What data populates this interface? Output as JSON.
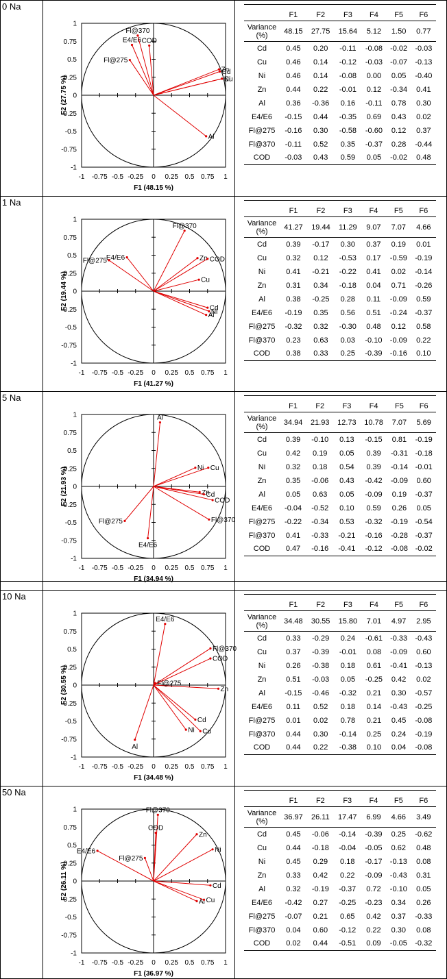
{
  "variables": [
    "Cd",
    "Cu",
    "Ni",
    "Zn",
    "Al",
    "E4/E6",
    "Fl@275",
    "Fl@370",
    "COD"
  ],
  "factors": [
    "F1",
    "F2",
    "F3",
    "F4",
    "F5",
    "F6"
  ],
  "variance_label": "Variance (%)",
  "axis_ticks": [
    "-1",
    "-0.75",
    "-0.5",
    "-0.25",
    "0",
    "0.25",
    "0.5",
    "0.75",
    "1"
  ],
  "colors": {
    "vector": "#e00000",
    "axis": "#000000"
  },
  "panels": [
    {
      "label": "0 Na",
      "xlabel": "F1 (48.15 %)",
      "ylabel": "F2 (27.75 %)",
      "variance": [
        "48.15",
        "27.75",
        "15.64",
        "5.12",
        "1.50",
        "0.77"
      ],
      "rows": [
        [
          "0.45",
          "0.20",
          "-0.11",
          "-0.08",
          "-0.02",
          "-0.03"
        ],
        [
          "0.46",
          "0.14",
          "-0.12",
          "-0.03",
          "-0.07",
          "-0.13"
        ],
        [
          "0.46",
          "0.14",
          "-0.08",
          "0.00",
          "0.05",
          "-0.40"
        ],
        [
          "0.44",
          "0.22",
          "-0.01",
          "0.12",
          "-0.34",
          "0.41"
        ],
        [
          "0.36",
          "-0.36",
          "0.16",
          "-0.11",
          "0.78",
          "0.30"
        ],
        [
          "-0.15",
          "0.44",
          "-0.35",
          "0.69",
          "0.43",
          "0.02"
        ],
        [
          "-0.16",
          "0.30",
          "-0.58",
          "-0.60",
          "0.12",
          "0.37"
        ],
        [
          "-0.11",
          "0.52",
          "0.35",
          "-0.37",
          "0.28",
          "-0.44"
        ],
        [
          "-0.03",
          "0.43",
          "0.59",
          "0.05",
          "-0.02",
          "0.48"
        ]
      ]
    },
    {
      "label": "1 Na",
      "xlabel": "F1 (41.27 %)",
      "ylabel": "F2 (19.44 %)",
      "variance": [
        "41.27",
        "19.44",
        "11.29",
        "9.07",
        "7.07",
        "4.66"
      ],
      "rows": [
        [
          "0.39",
          "-0.17",
          "0.30",
          "0.37",
          "0.19",
          "0.01"
        ],
        [
          "0.32",
          "0.12",
          "-0.53",
          "0.17",
          "-0.59",
          "-0.19"
        ],
        [
          "0.41",
          "-0.21",
          "-0.22",
          "0.41",
          "0.02",
          "-0.14"
        ],
        [
          "0.31",
          "0.34",
          "-0.18",
          "0.04",
          "0.71",
          "-0.26"
        ],
        [
          "0.38",
          "-0.25",
          "0.28",
          "0.11",
          "-0.09",
          "0.59"
        ],
        [
          "-0.19",
          "0.35",
          "0.56",
          "0.51",
          "-0.24",
          "-0.37"
        ],
        [
          "-0.32",
          "0.32",
          "-0.30",
          "0.48",
          "0.12",
          "0.58"
        ],
        [
          "0.23",
          "0.63",
          "0.03",
          "-0.10",
          "-0.09",
          "0.22"
        ],
        [
          "0.38",
          "0.33",
          "0.25",
          "-0.39",
          "-0.16",
          "0.10"
        ]
      ]
    },
    {
      "label": "5 Na",
      "xlabel": "F1 (34.94 %)",
      "ylabel": "F2 (21.93 %)",
      "variance": [
        "34.94",
        "21.93",
        "12.73",
        "10.78",
        "7.07",
        "5.69"
      ],
      "rows": [
        [
          "0.39",
          "-0.10",
          "0.13",
          "-0.15",
          "0.81",
          "-0.19"
        ],
        [
          "0.42",
          "0.19",
          "0.05",
          "0.39",
          "-0.31",
          "-0.18"
        ],
        [
          "0.32",
          "0.18",
          "0.54",
          "0.39",
          "-0.14",
          "-0.01"
        ],
        [
          "0.35",
          "-0.06",
          "0.43",
          "-0.42",
          "-0.09",
          "0.60"
        ],
        [
          "0.05",
          "0.63",
          "0.05",
          "-0.09",
          "0.19",
          "-0.37"
        ],
        [
          "-0.04",
          "-0.52",
          "0.10",
          "0.59",
          "0.26",
          "0.05"
        ],
        [
          "-0.22",
          "-0.34",
          "0.53",
          "-0.32",
          "-0.19",
          "-0.54"
        ],
        [
          "0.41",
          "-0.33",
          "-0.21",
          "-0.16",
          "-0.28",
          "-0.37"
        ],
        [
          "0.47",
          "-0.16",
          "-0.41",
          "-0.12",
          "-0.08",
          "-0.02"
        ]
      ]
    },
    {
      "label": "10 Na",
      "xlabel": "F1 (34.48 %)",
      "ylabel": "F2 (30.55 %)",
      "variance": [
        "34.48",
        "30.55",
        "15.80",
        "7.01",
        "4.97",
        "2.95"
      ],
      "rows": [
        [
          "0.33",
          "-0.29",
          "0.24",
          "-0.61",
          "-0.33",
          "-0.43"
        ],
        [
          "0.37",
          "-0.39",
          "-0.01",
          "0.08",
          "-0.09",
          "0.60"
        ],
        [
          "0.26",
          "-0.38",
          "0.18",
          "0.61",
          "-0.41",
          "-0.13"
        ],
        [
          "0.51",
          "-0.03",
          "0.05",
          "-0.25",
          "0.42",
          "0.02"
        ],
        [
          "-0.15",
          "-0.46",
          "-0.32",
          "0.21",
          "0.30",
          "-0.57"
        ],
        [
          "0.11",
          "0.52",
          "0.18",
          "0.14",
          "-0.43",
          "-0.25"
        ],
        [
          "0.01",
          "0.02",
          "0.78",
          "0.21",
          "0.45",
          "-0.08"
        ],
        [
          "0.44",
          "0.30",
          "-0.14",
          "0.25",
          "0.24",
          "-0.19"
        ],
        [
          "0.44",
          "0.22",
          "-0.38",
          "0.10",
          "0.04",
          "-0.08"
        ]
      ]
    },
    {
      "label": "50 Na",
      "xlabel": "F1 (36.97 %)",
      "ylabel": "F2 (26.11 %)",
      "variance": [
        "36.97",
        "26.11",
        "17.47",
        "6.99",
        "4.66",
        "3.49"
      ],
      "rows": [
        [
          "0.45",
          "-0.06",
          "-0.14",
          "-0.39",
          "0.25",
          "-0.62"
        ],
        [
          "0.44",
          "-0.18",
          "-0.04",
          "-0.05",
          "0.62",
          "0.48"
        ],
        [
          "0.45",
          "0.29",
          "0.18",
          "-0.17",
          "-0.13",
          "0.08"
        ],
        [
          "0.33",
          "0.42",
          "0.22",
          "-0.09",
          "-0.43",
          "0.31"
        ],
        [
          "0.32",
          "-0.19",
          "-0.37",
          "0.72",
          "-0.10",
          "0.05"
        ],
        [
          "-0.42",
          "0.27",
          "-0.25",
          "-0.23",
          "0.34",
          "0.26"
        ],
        [
          "-0.07",
          "0.21",
          "0.65",
          "0.42",
          "0.37",
          "-0.33"
        ],
        [
          "0.04",
          "0.60",
          "-0.12",
          "0.22",
          "0.30",
          "0.08"
        ],
        [
          "0.02",
          "0.44",
          "-0.51",
          "0.09",
          "-0.05",
          "-0.32"
        ]
      ]
    }
  ],
  "chart_data": [
    {
      "type": "scatter",
      "title": "0 Na",
      "xlabel": "F1 (48.15 %)",
      "ylabel": "F2 (27.75 %)",
      "xlim": [
        -1,
        1
      ],
      "ylim": [
        -1,
        1
      ],
      "grid": false,
      "points": [
        {
          "label": "Zn",
          "x": 0.91,
          "y": 0.36
        },
        {
          "label": "Cd",
          "x": 0.92,
          "y": 0.33
        },
        {
          "label": "Cu",
          "x": 0.95,
          "y": 0.23
        },
        {
          "label": "Ni",
          "x": 0.95,
          "y": 0.23
        },
        {
          "label": "Al",
          "x": 0.73,
          "y": -0.57
        },
        {
          "label": "E4/E6",
          "x": -0.3,
          "y": 0.7
        },
        {
          "label": "Fl@275",
          "x": -0.33,
          "y": 0.49
        },
        {
          "label": "Fl@370",
          "x": -0.22,
          "y": 0.83
        },
        {
          "label": "COD",
          "x": -0.06,
          "y": 0.69
        }
      ]
    },
    {
      "type": "scatter",
      "title": "1 Na",
      "xlabel": "F1 (41.27 %)",
      "ylabel": "F2 (19.44 %)",
      "xlim": [
        -1,
        1
      ],
      "ylim": [
        -1,
        1
      ],
      "grid": false,
      "points": [
        {
          "label": "Fl@370",
          "x": 0.43,
          "y": 0.84
        },
        {
          "label": "E4/E6",
          "x": -0.37,
          "y": 0.47
        },
        {
          "label": "Fl@275",
          "x": -0.62,
          "y": 0.43
        },
        {
          "label": "Zn",
          "x": 0.61,
          "y": 0.46
        },
        {
          "label": "COD",
          "x": 0.75,
          "y": 0.45
        },
        {
          "label": "Cu",
          "x": 0.63,
          "y": 0.16
        },
        {
          "label": "Cd",
          "x": 0.75,
          "y": -0.23
        },
        {
          "label": "Ni",
          "x": 0.77,
          "y": -0.28
        },
        {
          "label": "Al",
          "x": 0.73,
          "y": -0.33
        }
      ]
    },
    {
      "type": "scatter",
      "title": "5 Na",
      "xlabel": "F1 (34.94 %)",
      "ylabel": "F2 (21.93 %)",
      "xlim": [
        -1,
        1
      ],
      "ylim": [
        -1,
        1
      ],
      "grid": false,
      "points": [
        {
          "label": "Al",
          "x": 0.09,
          "y": 0.89
        },
        {
          "label": "Ni",
          "x": 0.58,
          "y": 0.26
        },
        {
          "label": "Cu",
          "x": 0.76,
          "y": 0.26
        },
        {
          "label": "Zn",
          "x": 0.64,
          "y": -0.08
        },
        {
          "label": "Cd",
          "x": 0.7,
          "y": -0.11
        },
        {
          "label": "COD",
          "x": 0.82,
          "y": -0.19
        },
        {
          "label": "Fl@370",
          "x": 0.77,
          "y": -0.46
        },
        {
          "label": "Fl@275",
          "x": -0.4,
          "y": -0.48
        },
        {
          "label": "E4/E6",
          "x": -0.08,
          "y": -0.72
        }
      ]
    },
    {
      "type": "scatter",
      "title": "10 Na",
      "xlabel": "F1 (34.48 %)",
      "ylabel": "F2 (30.55 %)",
      "xlim": [
        -1,
        1
      ],
      "ylim": [
        -1,
        1
      ],
      "grid": false,
      "points": [
        {
          "label": "E4/E6",
          "x": 0.16,
          "y": 0.85
        },
        {
          "label": "Fl@370",
          "x": 0.79,
          "y": 0.51
        },
        {
          "label": "COD",
          "x": 0.79,
          "y": 0.37
        },
        {
          "label": "Fl@275",
          "x": 0.02,
          "y": 0.03
        },
        {
          "label": "Zn",
          "x": 0.9,
          "y": -0.05
        },
        {
          "label": "Cd",
          "x": 0.58,
          "y": -0.48
        },
        {
          "label": "Cu",
          "x": 0.65,
          "y": -0.64
        },
        {
          "label": "Ni",
          "x": 0.45,
          "y": -0.62
        },
        {
          "label": "Al",
          "x": -0.26,
          "y": -0.76
        }
      ]
    },
    {
      "type": "scatter",
      "title": "50 Na",
      "xlabel": "F1 (36.97 %)",
      "ylabel": "F2 (26.11 %)",
      "xlim": [
        -1,
        1
      ],
      "ylim": [
        -1,
        1
      ],
      "grid": false,
      "points": [
        {
          "label": "Fl@370",
          "x": 0.06,
          "y": 0.92
        },
        {
          "label": "COD",
          "x": 0.03,
          "y": 0.67
        },
        {
          "label": "Zn",
          "x": 0.6,
          "y": 0.65
        },
        {
          "label": "Ni",
          "x": 0.82,
          "y": 0.44
        },
        {
          "label": "E4/E6",
          "x": -0.78,
          "y": 0.42
        },
        {
          "label": "Fl@275",
          "x": -0.12,
          "y": 0.32
        },
        {
          "label": "Cd",
          "x": 0.79,
          "y": -0.06
        },
        {
          "label": "Al",
          "x": 0.6,
          "y": -0.28
        },
        {
          "label": "Cu",
          "x": 0.7,
          "y": -0.26
        }
      ]
    }
  ]
}
